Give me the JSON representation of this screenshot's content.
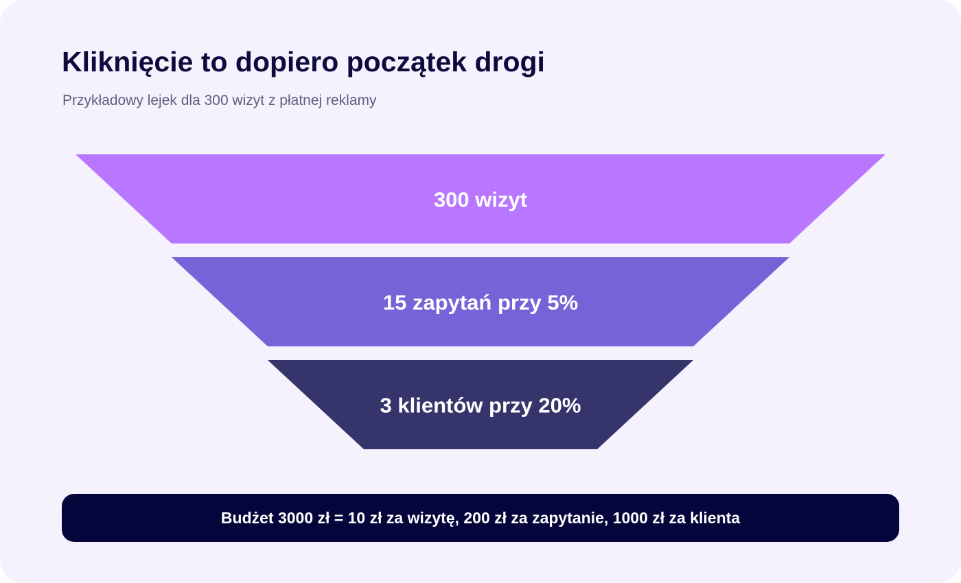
{
  "header": {
    "title": "Kliknięcie to dopiero początek drogi",
    "subtitle": "Przykładowy lejek dla 300 wizyt z płatnej reklamy"
  },
  "funnel": {
    "stages": [
      {
        "label": "300 wizyt",
        "color": "#b877fe"
      },
      {
        "label": "15 zapytań przy 5%",
        "color": "#7762d8"
      },
      {
        "label": "3 klientów przy 20%",
        "color": "#36356b"
      }
    ]
  },
  "summary": {
    "text": "Budżet 3000 zł = 10 zł za wizytę, 200 zł za zapytanie, 1000 zł za klienta"
  }
}
